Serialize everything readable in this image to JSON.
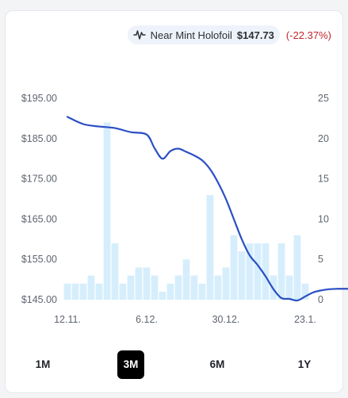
{
  "legend": {
    "icon": "line-chart-icon",
    "name": "Near Mint Holofoil",
    "price": "$147.73",
    "change": "(-22.37%)"
  },
  "colors": {
    "line": "#2a4fc5",
    "bar": "#d6eefc",
    "change_negative": "#c0262d"
  },
  "ranges": [
    {
      "label": "1M",
      "active": false
    },
    {
      "label": "3M",
      "active": true
    },
    {
      "label": "6M",
      "active": false
    },
    {
      "label": "1Y",
      "active": false
    }
  ],
  "chart_data": {
    "type": "line",
    "grid": false,
    "y_left": {
      "ticks": [
        "$195.00",
        "$185.00",
        "$175.00",
        "$165.00",
        "$155.00",
        "$145.00"
      ],
      "range": [
        145,
        195
      ]
    },
    "y_right": {
      "ticks": [
        "25",
        "20",
        "15",
        "10",
        "5",
        "0"
      ],
      "range": [
        0,
        25
      ]
    },
    "x_ticks": [
      {
        "label": "12.11.",
        "index": 0
      },
      {
        "label": "6.12.",
        "index": 10
      },
      {
        "label": "30.12.",
        "index": 20
      },
      {
        "label": "23.1.",
        "index": 30
      }
    ],
    "price_series": {
      "index": [
        0,
        2,
        4,
        6,
        8,
        10,
        11,
        12,
        13,
        14,
        15,
        16,
        17,
        18,
        19,
        20,
        21,
        22,
        23,
        24,
        25,
        26,
        27,
        28,
        29,
        30,
        31,
        32,
        33,
        34,
        35,
        36
      ],
      "values": [
        190.4,
        188.6,
        188.0,
        187.6,
        186.6,
        186.0,
        182.6,
        180.0,
        181.9,
        182.5,
        181.7,
        180.8,
        179.6,
        177.4,
        174.1,
        170.0,
        165.0,
        160.0,
        156.0,
        153.6,
        150.8,
        147.6,
        145.4,
        145.2,
        144.8,
        145.8,
        146.8,
        147.3,
        147.6,
        147.7,
        147.7,
        147.7
      ]
    },
    "volume_series": {
      "values": [
        2,
        2,
        2,
        3,
        2,
        22,
        7,
        2,
        3,
        4,
        4,
        3,
        1,
        2,
        3,
        5,
        3,
        2,
        13,
        3,
        4,
        8,
        6,
        7,
        7,
        7,
        3,
        7,
        3,
        8,
        2
      ]
    }
  }
}
